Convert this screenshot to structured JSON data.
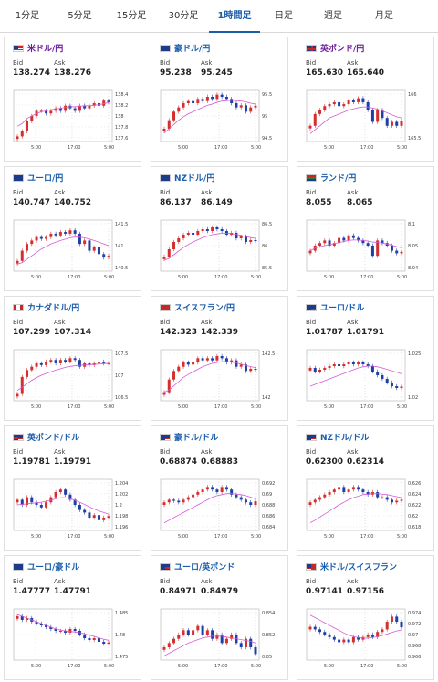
{
  "tabs": [
    {
      "label": "1分足",
      "active": false
    },
    {
      "label": "5分足",
      "active": false
    },
    {
      "label": "15分足",
      "active": false
    },
    {
      "label": "30分足",
      "active": false
    },
    {
      "label": "1時間足",
      "active": true
    },
    {
      "label": "日足",
      "active": false
    },
    {
      "label": "週足",
      "active": false
    },
    {
      "label": "月足",
      "active": false
    }
  ],
  "bid_label": "Bid",
  "ask_label": "Ask",
  "colors": {
    "up": "#d32f2f",
    "down": "#1f3fa8",
    "ma": "#d65cd6",
    "accent": "#1a5dab"
  },
  "cards": [
    {
      "pair": "米ドル/円",
      "flag": "us",
      "bid": "138.274",
      "ask": "138.276",
      "chart_data": {
        "type": "candlestick",
        "y_ticks": [
          "138.4",
          "138.2",
          "138",
          "137.8",
          "137.6"
        ],
        "x_ticks": [
          "5:00",
          "17:00",
          "5:00"
        ],
        "ylim": [
          137.5,
          138.5
        ],
        "closes": [
          137.6,
          137.7,
          137.9,
          138.0,
          138.1,
          138.1,
          138.05,
          138.1,
          138.15,
          138.1,
          138.2,
          138.15,
          138.1,
          138.2,
          138.15,
          138.2,
          138.25,
          138.2,
          138.3,
          138.27
        ],
        "ma": [
          137.8,
          137.85,
          137.95,
          138.0,
          138.05,
          138.08,
          138.1,
          138.12,
          138.14,
          138.15,
          138.17,
          138.18,
          138.18,
          138.19,
          138.2,
          138.2,
          138.21,
          138.22,
          138.24,
          138.26
        ]
      }
    },
    {
      "pair": "豪ドル/円",
      "flag": "au",
      "bid": "95.238",
      "ask": "95.245",
      "chart_data": {
        "type": "candlestick",
        "y_ticks": [
          "95.5",
          "95",
          "94.5"
        ],
        "x_ticks": [
          "5:00",
          "17:00",
          "5:00"
        ],
        "ylim": [
          94.4,
          95.6
        ],
        "closes": [
          94.7,
          94.9,
          95.1,
          95.2,
          95.3,
          95.35,
          95.3,
          95.4,
          95.35,
          95.45,
          95.4,
          95.5,
          95.45,
          95.4,
          95.3,
          95.2,
          95.25,
          95.1,
          95.2,
          95.24
        ],
        "ma": [
          94.6,
          94.7,
          94.8,
          94.9,
          94.98,
          95.05,
          95.1,
          95.15,
          95.2,
          95.25,
          95.28,
          95.32,
          95.35,
          95.36,
          95.37,
          95.36,
          95.35,
          95.33,
          95.3,
          95.28
        ]
      }
    },
    {
      "pair": "英ポンド/円",
      "flag": "gb",
      "bid": "165.630",
      "ask": "165.640",
      "chart_data": {
        "type": "candlestick",
        "y_ticks": [
          "166",
          "165.5"
        ],
        "x_ticks": [
          "5:00",
          "17:00",
          "5:00"
        ],
        "ylim": [
          165.1,
          166.4
        ],
        "closes": [
          165.5,
          165.8,
          165.9,
          166.0,
          166.05,
          166.1,
          166.0,
          166.05,
          166.15,
          166.1,
          166.2,
          166.1,
          165.9,
          165.6,
          165.9,
          165.7,
          165.5,
          165.6,
          165.5,
          165.63
        ],
        "ma": [
          165.3,
          165.4,
          165.5,
          165.6,
          165.7,
          165.75,
          165.8,
          165.85,
          165.9,
          165.93,
          165.96,
          165.98,
          165.98,
          165.95,
          165.92,
          165.88,
          165.83,
          165.78,
          165.73,
          165.7
        ]
      }
    },
    {
      "pair": "ユーロ/円",
      "flag": "eu",
      "bid": "140.747",
      "ask": "140.752",
      "chart_data": {
        "type": "candlestick",
        "y_ticks": [
          "141.5",
          "141",
          "140.5"
        ],
        "x_ticks": [
          "5:00",
          "17:00",
          "5:00"
        ],
        "ylim": [
          140.3,
          141.8
        ],
        "closes": [
          140.6,
          140.9,
          141.1,
          141.2,
          141.3,
          141.25,
          141.3,
          141.4,
          141.35,
          141.45,
          141.4,
          141.5,
          141.4,
          141.1,
          141.2,
          140.9,
          141.0,
          140.8,
          140.7,
          140.75
        ],
        "ma": [
          140.5,
          140.55,
          140.65,
          140.75,
          140.85,
          140.95,
          141.02,
          141.1,
          141.15,
          141.2,
          141.24,
          141.28,
          141.3,
          141.3,
          141.28,
          141.24,
          141.2,
          141.15,
          141.1,
          141.05
        ]
      }
    },
    {
      "pair": "NZドル/円",
      "flag": "nz",
      "bid": "86.137",
      "ask": "86.149",
      "chart_data": {
        "type": "candlestick",
        "y_ticks": [
          "86.5",
          "86",
          "85.5"
        ],
        "x_ticks": [
          "5:00",
          "17:00",
          "5:00"
        ],
        "ylim": [
          85.3,
          86.7
        ],
        "closes": [
          85.7,
          85.9,
          86.1,
          86.2,
          86.3,
          86.35,
          86.3,
          86.4,
          86.45,
          86.4,
          86.5,
          86.45,
          86.4,
          86.3,
          86.35,
          86.2,
          86.25,
          86.1,
          86.15,
          86.14
        ],
        "ma": [
          85.6,
          85.65,
          85.75,
          85.85,
          85.95,
          86.03,
          86.1,
          86.16,
          86.22,
          86.26,
          86.3,
          86.32,
          86.34,
          86.34,
          86.33,
          86.31,
          86.28,
          86.25,
          86.22,
          86.2
        ]
      }
    },
    {
      "pair": "ランド/円",
      "flag": "za",
      "bid": "8.055",
      "ask": "8.065",
      "chart_data": {
        "type": "candlestick",
        "y_ticks": [
          "8.1",
          "8.05",
          "8.04"
        ],
        "x_ticks": [
          "5:00",
          "17:00",
          "5:00"
        ],
        "ylim": [
          8.02,
          8.12
        ],
        "closes": [
          8.06,
          8.07,
          8.075,
          8.08,
          8.07,
          8.075,
          8.085,
          8.08,
          8.09,
          8.085,
          8.08,
          8.075,
          8.07,
          8.05,
          8.08,
          8.075,
          8.07,
          8.06,
          8.055,
          8.058
        ],
        "ma": [
          8.06,
          8.065,
          8.068,
          8.07,
          8.072,
          8.074,
          8.076,
          8.078,
          8.08,
          8.081,
          8.081,
          8.08,
          8.079,
          8.077,
          8.076,
          8.075,
          8.073,
          8.071,
          8.068,
          8.066
        ]
      }
    },
    {
      "pair": "カナダドル/円",
      "flag": "ca",
      "bid": "107.299",
      "ask": "107.314",
      "chart_data": {
        "type": "candlestick",
        "y_ticks": [
          "107.5",
          "107",
          "106.5"
        ],
        "x_ticks": [
          "5:00",
          "17:00",
          "5:00"
        ],
        "ylim": [
          106.2,
          107.7
        ],
        "closes": [
          106.4,
          106.9,
          107.1,
          107.2,
          107.3,
          107.25,
          107.35,
          107.4,
          107.3,
          107.4,
          107.35,
          107.45,
          107.4,
          107.2,
          107.3,
          107.25,
          107.3,
          107.35,
          107.3,
          107.3
        ],
        "ma": [
          106.5,
          106.6,
          106.7,
          106.8,
          106.88,
          106.95,
          107.0,
          107.05,
          107.1,
          107.14,
          107.18,
          107.21,
          107.23,
          107.24,
          107.25,
          107.26,
          107.27,
          107.28,
          107.29,
          107.3
        ]
      }
    },
    {
      "pair": "スイスフラン/円",
      "flag": "ch",
      "bid": "142.323",
      "ask": "142.339",
      "chart_data": {
        "type": "candlestick",
        "y_ticks": [
          "142.5",
          "142"
        ],
        "x_ticks": [
          "5:00",
          "17:00",
          "5:00"
        ],
        "ylim": [
          141.6,
          142.8
        ],
        "closes": [
          141.8,
          142.1,
          142.3,
          142.4,
          142.5,
          142.45,
          142.5,
          142.6,
          142.55,
          142.6,
          142.55,
          142.65,
          142.6,
          142.5,
          142.55,
          142.4,
          142.45,
          142.3,
          142.35,
          142.33
        ],
        "ma": [
          141.8,
          141.85,
          141.95,
          142.05,
          142.15,
          142.22,
          142.28,
          142.34,
          142.4,
          142.44,
          142.48,
          142.5,
          142.52,
          142.52,
          142.51,
          142.49,
          142.46,
          142.43,
          142.4,
          142.38
        ]
      }
    },
    {
      "pair": "ユーロ/ドル",
      "flag": "eu-us",
      "bid": "1.01787",
      "ask": "1.01791",
      "chart_data": {
        "type": "candlestick",
        "y_ticks": [
          "1.025",
          "1.02"
        ],
        "x_ticks": [
          "5:00",
          "17:00",
          "5:00"
        ],
        "ylim": [
          1.014,
          1.028
        ],
        "closes": [
          1.023,
          1.022,
          1.0225,
          1.023,
          1.0235,
          1.024,
          1.0235,
          1.024,
          1.0245,
          1.024,
          1.0245,
          1.024,
          1.0235,
          1.022,
          1.021,
          1.02,
          1.019,
          1.018,
          1.0175,
          1.0179
        ],
        "ma": [
          1.018,
          1.0185,
          1.019,
          1.0195,
          1.02,
          1.0205,
          1.021,
          1.0215,
          1.022,
          1.0225,
          1.023,
          1.0233,
          1.0235,
          1.0235,
          1.0233,
          1.023,
          1.0226,
          1.0222,
          1.0218,
          1.0214
        ]
      }
    },
    {
      "pair": "英ポンド/ドル",
      "flag": "gb-us",
      "bid": "1.19781",
      "ask": "1.19791",
      "chart_data": {
        "type": "candlestick",
        "y_ticks": [
          "1.204",
          "1.202",
          "1.2",
          "1.198",
          "1.196"
        ],
        "x_ticks": [
          "5:00",
          "17:00",
          "5:00"
        ],
        "ylim": [
          1.195,
          1.205
        ],
        "closes": [
          1.201,
          1.2,
          1.2015,
          1.2005,
          1.2,
          1.1995,
          1.2005,
          1.2015,
          1.2025,
          1.203,
          1.202,
          1.201,
          1.2,
          1.199,
          1.1985,
          1.1975,
          1.198,
          1.197,
          1.1975,
          1.1978
        ],
        "ma": [
          1.2,
          1.2001,
          1.2002,
          1.2003,
          1.2004,
          1.2005,
          1.2007,
          1.2009,
          1.2012,
          1.2014,
          1.2014,
          1.2012,
          1.2009,
          1.2005,
          1.2001,
          1.1996,
          1.1992,
          1.1988,
          1.1985,
          1.1982
        ]
      }
    },
    {
      "pair": "豪ドル/ドル",
      "flag": "au-us",
      "bid": "0.68874",
      "ask": "0.68883",
      "chart_data": {
        "type": "candlestick",
        "y_ticks": [
          "0.692",
          "0.69",
          "0.688",
          "0.686",
          "0.684"
        ],
        "x_ticks": [
          "5:00",
          "17:00",
          "5:00"
        ],
        "ylim": [
          0.683,
          0.693
        ],
        "closes": [
          0.6885,
          0.689,
          0.6888,
          0.6885,
          0.689,
          0.6895,
          0.69,
          0.6905,
          0.691,
          0.6915,
          0.691,
          0.6905,
          0.6915,
          0.691,
          0.69,
          0.6895,
          0.689,
          0.6885,
          0.688,
          0.6887
        ],
        "ma": [
          0.6845,
          0.685,
          0.6855,
          0.686,
          0.6865,
          0.687,
          0.6875,
          0.688,
          0.6885,
          0.689,
          0.6895,
          0.6898,
          0.69,
          0.6902,
          0.6902,
          0.6901,
          0.69,
          0.6898,
          0.6895,
          0.6892
        ]
      }
    },
    {
      "pair": "NZドル/ドル",
      "flag": "nz-us",
      "bid": "0.62300",
      "ask": "0.62314",
      "chart_data": {
        "type": "candlestick",
        "y_ticks": [
          "0.626",
          "0.624",
          "0.622",
          "0.62",
          "0.618"
        ],
        "x_ticks": [
          "5:00",
          "17:00",
          "5:00"
        ],
        "ylim": [
          0.617,
          0.627
        ],
        "closes": [
          0.6225,
          0.623,
          0.6235,
          0.624,
          0.6245,
          0.625,
          0.6255,
          0.6245,
          0.625,
          0.6255,
          0.625,
          0.6245,
          0.624,
          0.6245,
          0.6235,
          0.6235,
          0.623,
          0.6225,
          0.6228,
          0.623
        ],
        "ma": [
          0.6185,
          0.619,
          0.6196,
          0.6202,
          0.6208,
          0.6214,
          0.622,
          0.6225,
          0.623,
          0.6234,
          0.6237,
          0.624,
          0.6241,
          0.6242,
          0.6242,
          0.6241,
          0.624,
          0.6238,
          0.6236,
          0.6234
        ]
      }
    },
    {
      "pair": "ユーロ/豪ドル",
      "flag": "eu-au",
      "bid": "1.47777",
      "ask": "1.47791",
      "chart_data": {
        "type": "candlestick",
        "y_ticks": [
          "1.485",
          "1.48",
          "1.475"
        ],
        "x_ticks": [
          "5:00",
          "17:00",
          "5:00"
        ],
        "ylim": [
          1.473,
          1.487
        ],
        "closes": [
          1.485,
          1.484,
          1.4845,
          1.4835,
          1.483,
          1.4825,
          1.482,
          1.4815,
          1.481,
          1.481,
          1.4805,
          1.4815,
          1.481,
          1.48,
          1.479,
          1.4785,
          1.479,
          1.478,
          1.4775,
          1.4778
        ],
        "ma": [
          1.4855,
          1.485,
          1.4845,
          1.484,
          1.4835,
          1.483,
          1.4825,
          1.482,
          1.4815,
          1.4812,
          1.481,
          1.4808,
          1.4807,
          1.4805,
          1.4802,
          1.4798,
          1.4795,
          1.4791,
          1.4787,
          1.4784
        ]
      }
    },
    {
      "pair": "ユーロ/英ポンド",
      "flag": "eu-gb",
      "bid": "0.84971",
      "ask": "0.84979",
      "chart_data": {
        "type": "candlestick",
        "y_ticks": [
          "0.854",
          "0.852",
          "0.85"
        ],
        "x_ticks": [
          "5:00",
          "17:00",
          "5:00"
        ],
        "ylim": [
          0.849,
          0.855
        ],
        "closes": [
          0.8505,
          0.851,
          0.8515,
          0.852,
          0.8525,
          0.852,
          0.8525,
          0.853,
          0.852,
          0.8525,
          0.8515,
          0.852,
          0.851,
          0.8515,
          0.852,
          0.851,
          0.8505,
          0.8515,
          0.8505,
          0.8497
        ],
        "ma": [
          0.8495,
          0.8498,
          0.8501,
          0.8504,
          0.8507,
          0.851,
          0.8512,
          0.8514,
          0.8516,
          0.8517,
          0.8518,
          0.8518,
          0.8518,
          0.8517,
          0.8516,
          0.8515,
          0.8514,
          0.8513,
          0.8512,
          0.851
        ]
      }
    },
    {
      "pair": "米ドル/スイスフラン",
      "flag": "us-ch",
      "bid": "0.97141",
      "ask": "0.97156",
      "chart_data": {
        "type": "candlestick",
        "y_ticks": [
          "0.974",
          "0.972",
          "0.97",
          "0.968",
          "0.966"
        ],
        "x_ticks": [
          "5:00",
          "17:00",
          "5:00"
        ],
        "ylim": [
          0.965,
          0.975
        ],
        "closes": [
          0.9715,
          0.971,
          0.9705,
          0.97,
          0.9695,
          0.969,
          0.9685,
          0.969,
          0.9685,
          0.9695,
          0.969,
          0.9695,
          0.97,
          0.9695,
          0.9705,
          0.971,
          0.9725,
          0.9735,
          0.9725,
          0.9714
        ],
        "ma": [
          0.9738,
          0.9733,
          0.9728,
          0.9723,
          0.9718,
          0.9713,
          0.9708,
          0.9703,
          0.9699,
          0.9696,
          0.9694,
          0.9693,
          0.9693,
          0.9694,
          0.9696,
          0.9698,
          0.9701,
          0.9704,
          0.9707,
          0.9709
        ]
      }
    }
  ]
}
